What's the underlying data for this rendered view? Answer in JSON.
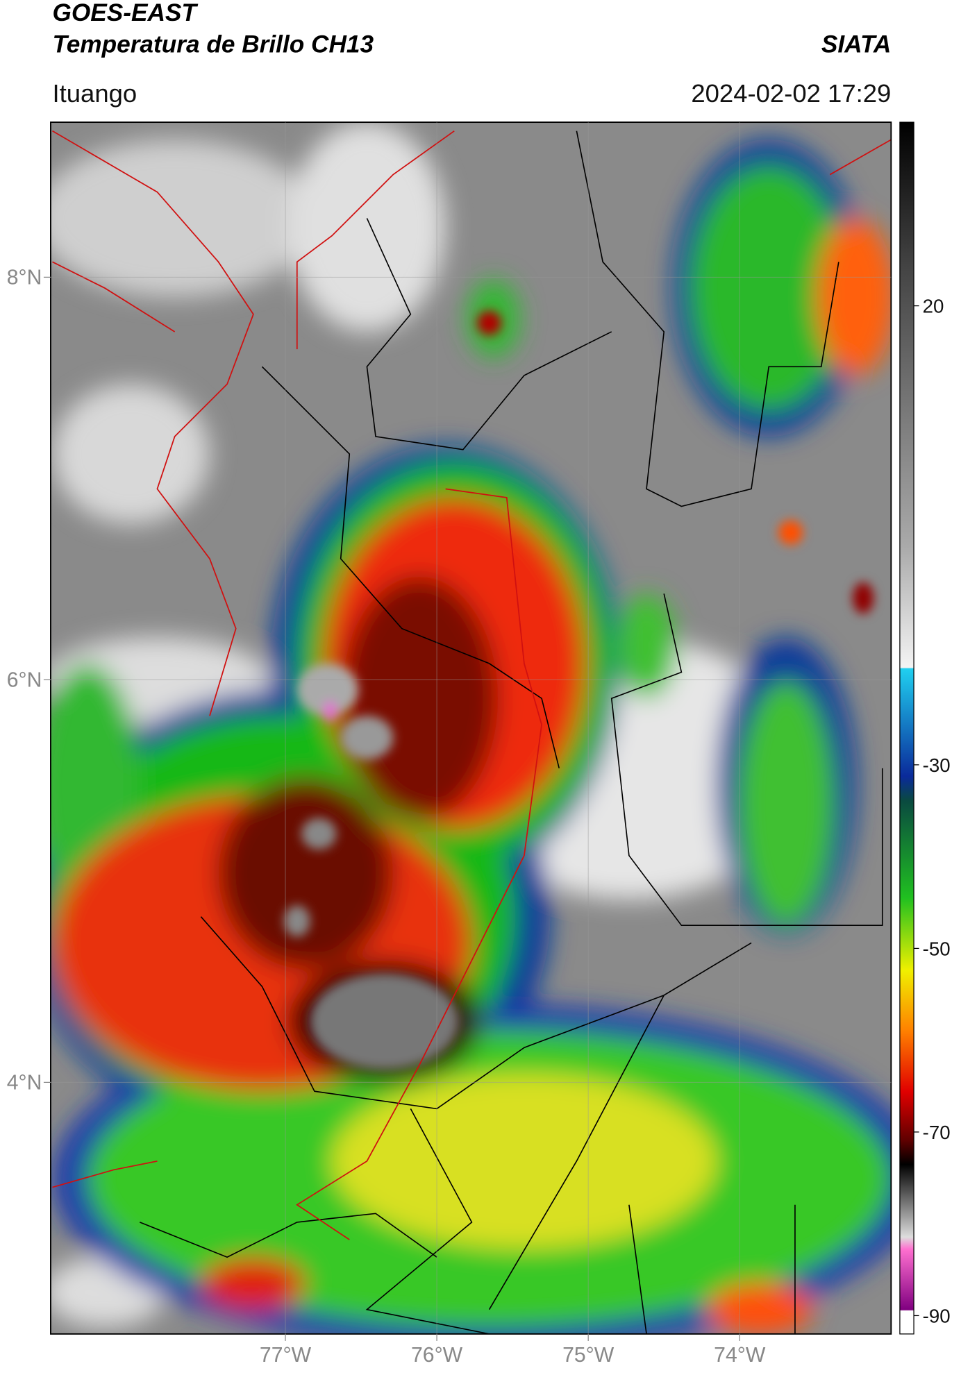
{
  "header": {
    "title": "GOES-EAST",
    "subtitle": "Temperatura de Brillo CH13",
    "source": "SIATA",
    "location": "Ituango",
    "timestamp": "2024-02-02 17:29"
  },
  "map": {
    "xlim": [
      -78.55,
      -73.0
    ],
    "ylim": [
      2.75,
      8.77
    ],
    "xticks": [
      {
        "value": -77,
        "label": "77°W"
      },
      {
        "value": -76,
        "label": "76°W"
      },
      {
        "value": -75,
        "label": "75°W"
      },
      {
        "value": -74,
        "label": "74°W"
      }
    ],
    "yticks": [
      {
        "value": 8,
        "label": "8°N"
      },
      {
        "value": 6,
        "label": "6°N"
      },
      {
        "value": 4,
        "label": "4°N"
      }
    ],
    "grid": true
  },
  "colorbar": {
    "lim": [
      -92,
      40
    ],
    "ticks": [
      20,
      -30,
      -50,
      -70,
      -90
    ]
  }
}
